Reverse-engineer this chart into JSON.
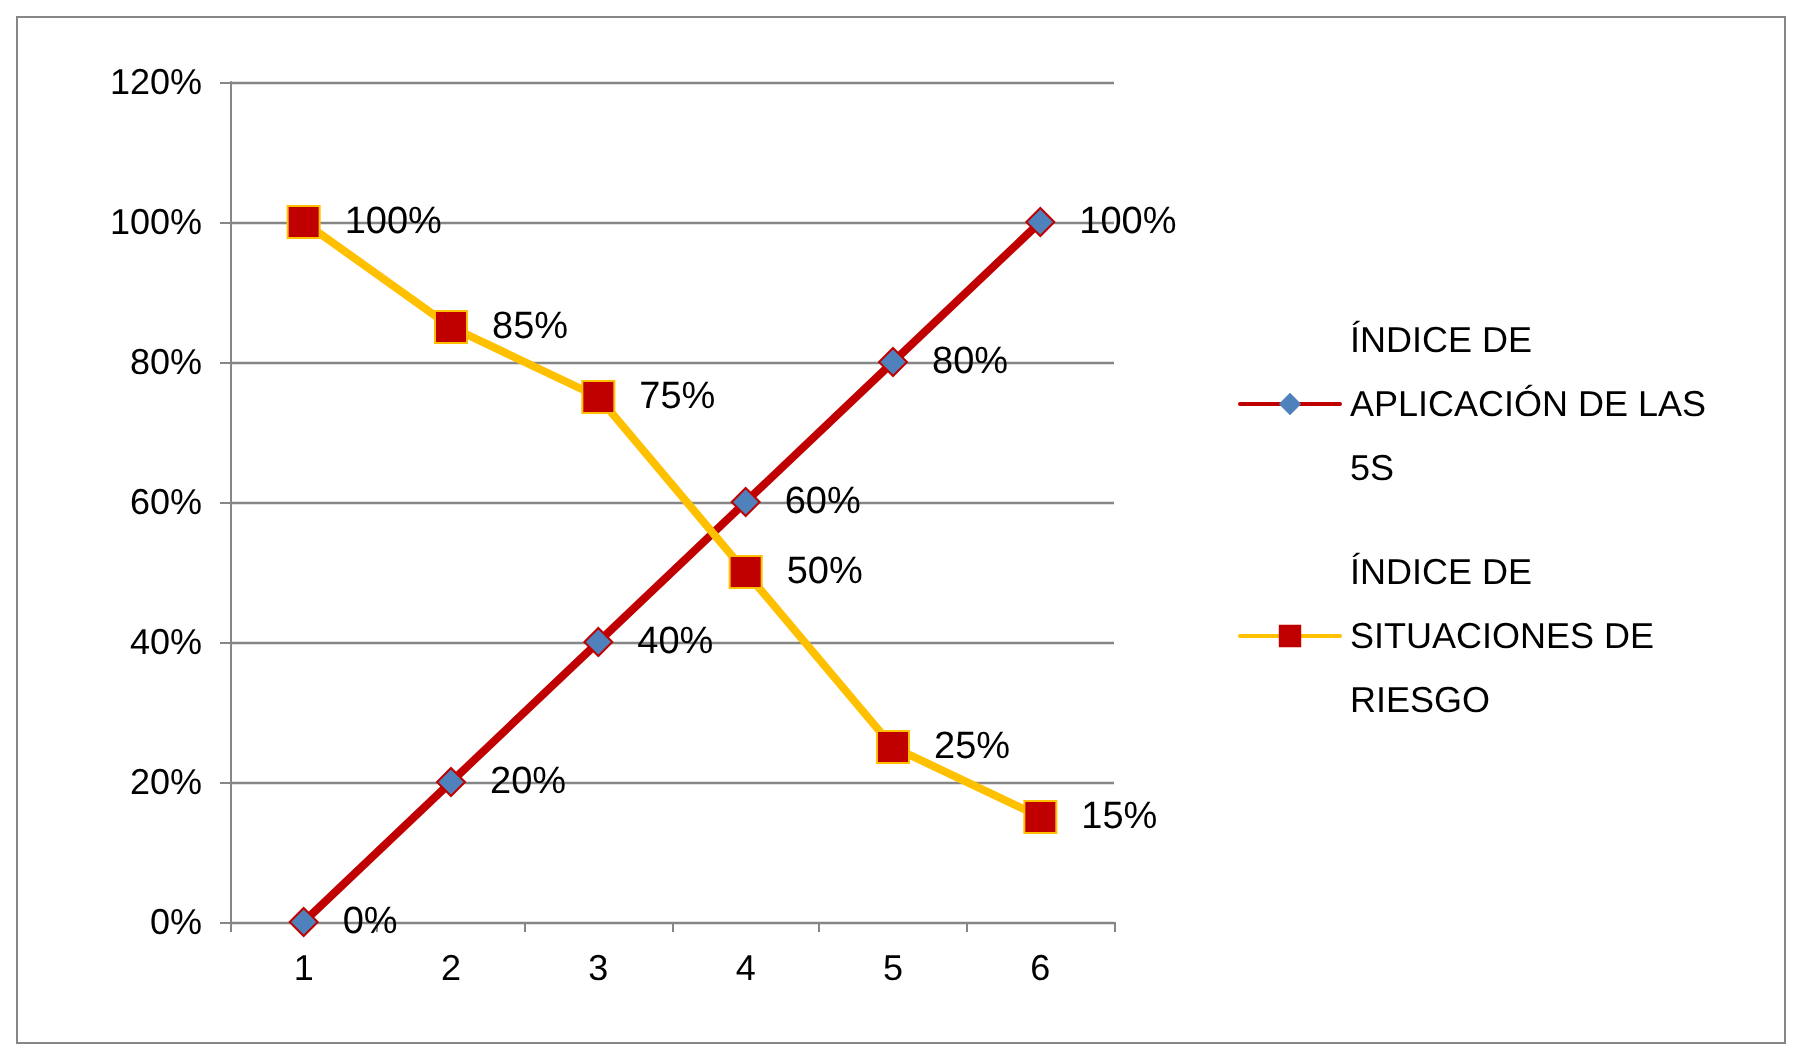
{
  "chart_data": {
    "type": "line",
    "categories": [
      "1",
      "2",
      "3",
      "4",
      "5",
      "6"
    ],
    "series": [
      {
        "name": "ÍNDICE DE APLICACIÓN DE LAS 5S",
        "color": "#c00000",
        "colors": [
          "#4f81bd",
          "#4f81bd",
          "#4f81bd",
          "#4f81bd",
          "#4f81bd",
          "#4f81bd"
        ],
        "marker": "diamond",
        "values": [
          0,
          20,
          40,
          60,
          80,
          100
        ],
        "value_labels": [
          "0%",
          "20%",
          "40%",
          "60%",
          "80%",
          "100%"
        ]
      },
      {
        "name": "ÍNDICE DE SITUACIONES DE RIESGO",
        "color": "#ffc000",
        "colors": [
          "#c00000",
          "#c00000",
          "#c00000",
          "#c00000",
          "#c00000",
          "#c00000"
        ],
        "marker": "square",
        "values": [
          100,
          85,
          75,
          50,
          25,
          15
        ],
        "value_labels": [
          "100%",
          "85%",
          "75%",
          "50%",
          "25%",
          "15%"
        ]
      }
    ],
    "ylim": [
      0,
      120
    ],
    "yticks": [
      {
        "value": 0,
        "label": "0%"
      },
      {
        "value": 20,
        "label": "20%"
      },
      {
        "value": 40,
        "label": "40%"
      },
      {
        "value": 60,
        "label": "60%"
      },
      {
        "value": 80,
        "label": "80%"
      },
      {
        "value": 100,
        "label": "100%"
      },
      {
        "value": 120,
        "label": "120%"
      }
    ],
    "grid": "y",
    "legend": "right",
    "line_style": "solid"
  }
}
